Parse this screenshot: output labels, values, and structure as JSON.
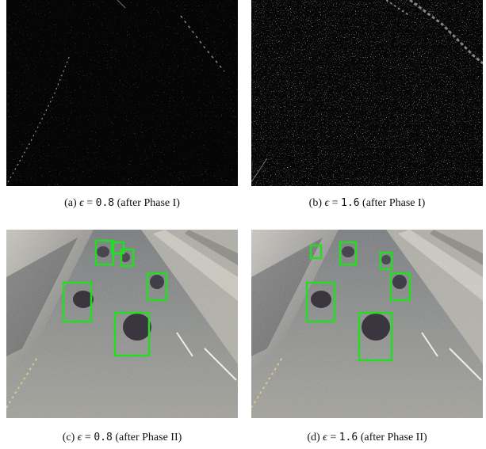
{
  "captions": {
    "a": {
      "label": "(a)",
      "symbol": "ϵ",
      "eq": "=",
      "value": "0.8",
      "phase": "(after Phase I)"
    },
    "b": {
      "label": "(b)",
      "symbol": "ϵ",
      "eq": "=",
      "value": "1.6",
      "phase": "(after Phase I)"
    },
    "c": {
      "label": "(c)",
      "symbol": "ϵ",
      "eq": "=",
      "value": "0.8",
      "phase": "(after Phase II)"
    },
    "d": {
      "label": "(d)",
      "symbol": "ϵ",
      "eq": "=",
      "value": "1.6",
      "phase": "(after Phase II)"
    }
  },
  "colors": {
    "noise_background": "#050505",
    "road_surface": "#8a8a88",
    "detection_box": "#22dd22"
  }
}
